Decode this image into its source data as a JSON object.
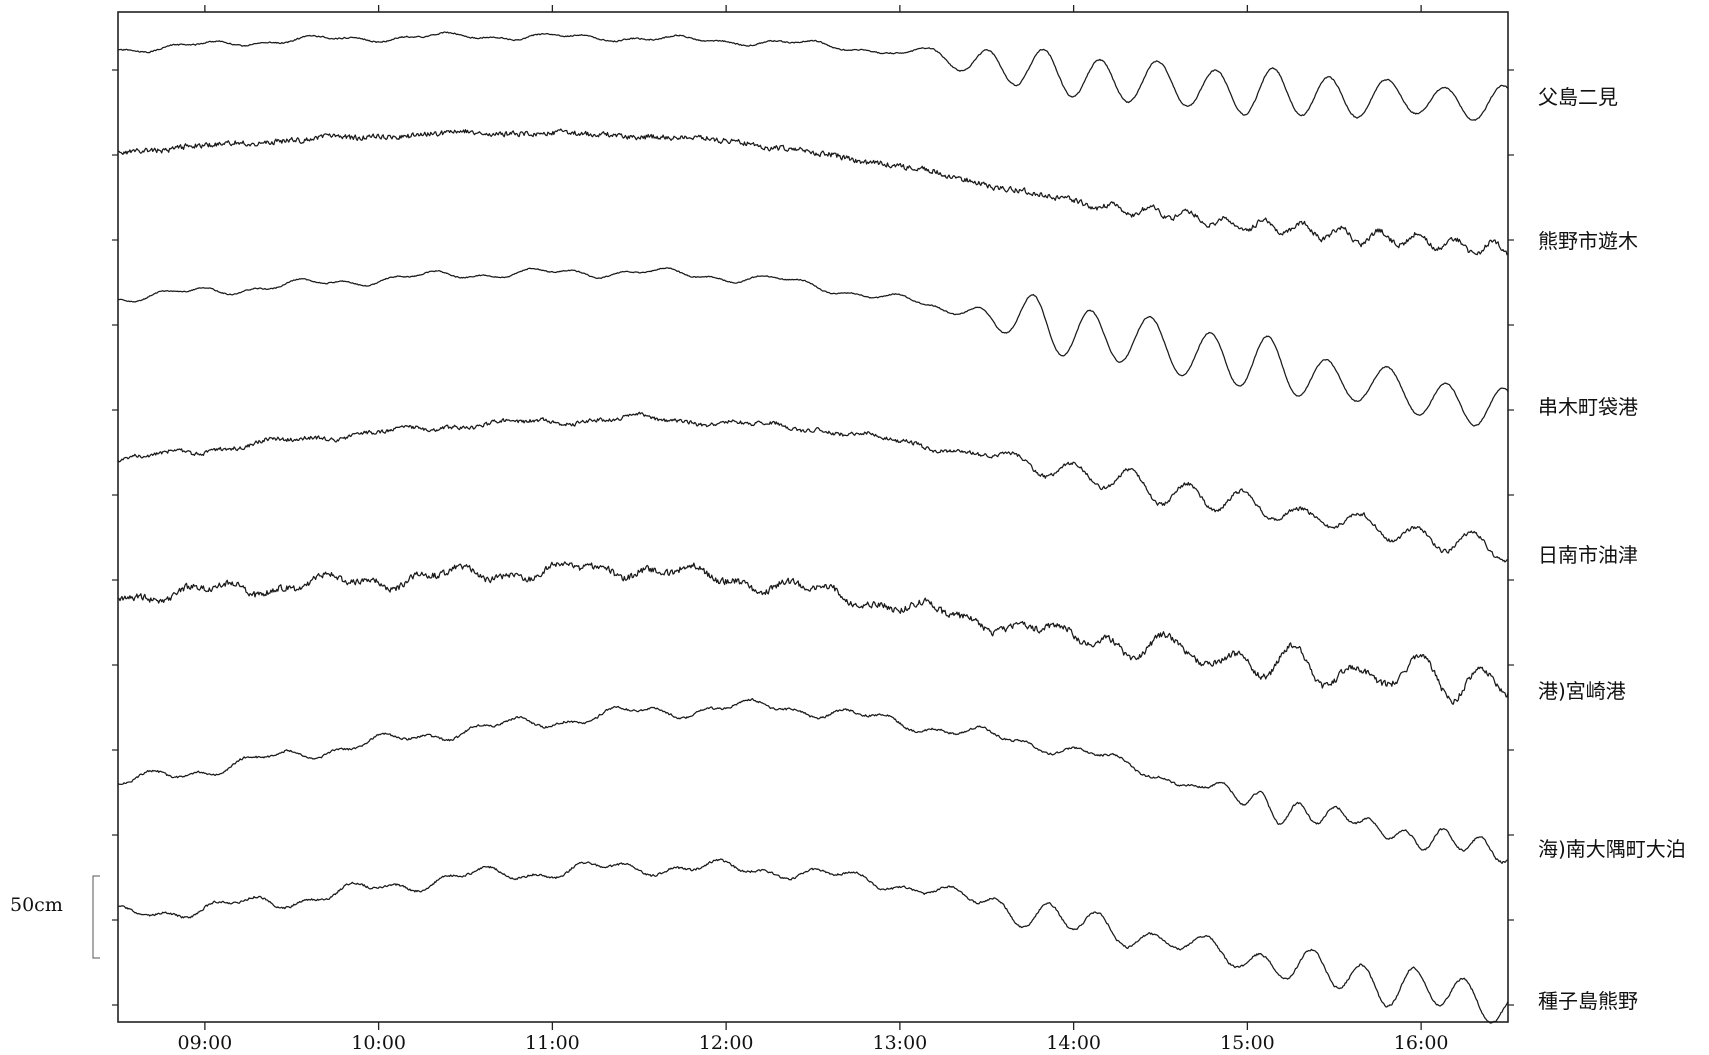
{
  "chart_data": {
    "type": "line",
    "x_ticks": [
      "09:00",
      "10:00",
      "11:00",
      "12:00",
      "13:00",
      "14:00",
      "15:00",
      "16:00"
    ],
    "x_range": [
      "08:30",
      "16:30"
    ],
    "scale_bar": {
      "label": "50cm",
      "value_cm": 50
    },
    "series": [
      {
        "name": "父島二見",
        "character": "calm until ~13:00, then tsunami oscillations ~25 cm",
        "onset": "12:55"
      },
      {
        "name": "熊野市遊木",
        "character": "high-frequency noise, falling tide, small oscillations after ~14:00",
        "onset": "13:50"
      },
      {
        "name": "串木町袋港",
        "character": "tsunami oscillations ~35 cm after ~13:15",
        "onset": "13:10"
      },
      {
        "name": "日南市油津",
        "character": "noisy, oscillations ~20 cm after ~13:30",
        "onset": "13:25"
      },
      {
        "name": "港)宮崎港",
        "character": "noisy, oscillations ~20 cm after ~14:00",
        "onset": "13:55"
      },
      {
        "name": "海)南大隅町大泊",
        "character": "tidal arch with short-period wiggles, oscillations after ~14:30",
        "onset": "14:30"
      },
      {
        "name": "種子島熊野",
        "character": "tidal arch, oscillations ~25 cm after ~13:20",
        "onset": "13:20"
      }
    ]
  }
}
